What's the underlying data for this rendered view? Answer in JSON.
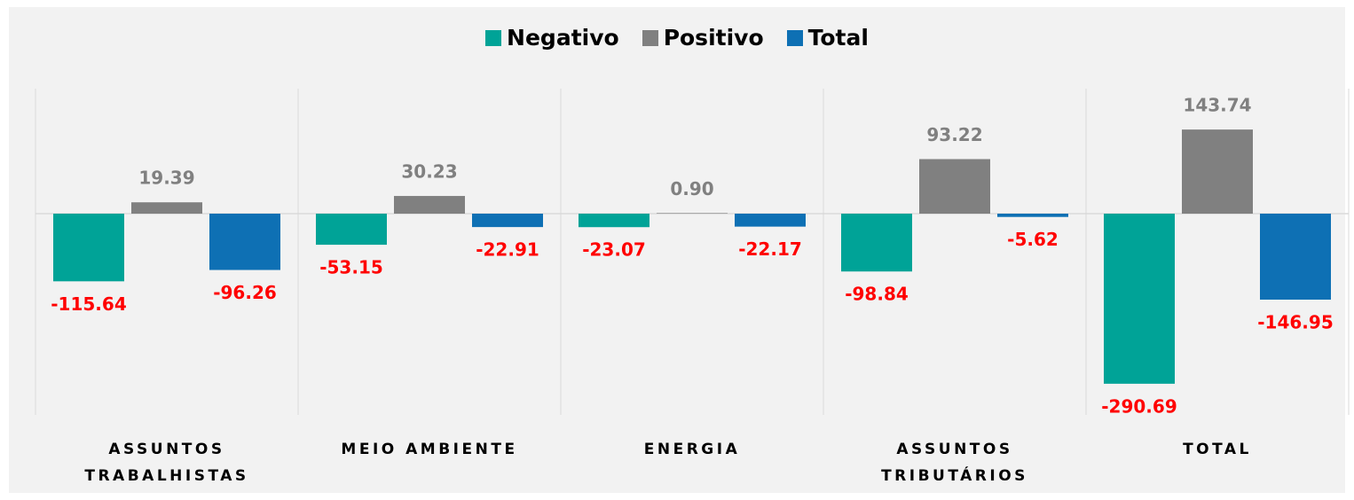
{
  "chart_data": {
    "type": "bar",
    "categories": [
      "ASSUNTOS TRABALHISTAS",
      "MEIO AMBIENTE",
      "ENERGIA",
      "ASSUNTOS TRIBUTÁRIOS",
      "TOTAL"
    ],
    "series": [
      {
        "name": "Negativo",
        "color": "#00a397",
        "values": [
          -115.64,
          -53.15,
          -23.07,
          -98.84,
          -290.69
        ]
      },
      {
        "name": "Positivo",
        "color": "#808080",
        "values": [
          19.39,
          30.23,
          0.9,
          93.22,
          143.74
        ],
        "value_labels": [
          "19.39",
          "30.23",
          "0.90",
          "93.22",
          "143.74"
        ]
      },
      {
        "name": "Total",
        "color": "#0e70b4",
        "values": [
          -96.26,
          -22.91,
          -22.17,
          -5.62,
          -146.95
        ]
      }
    ],
    "ylim": [
      -350,
      200
    ],
    "legend": "top"
  }
}
